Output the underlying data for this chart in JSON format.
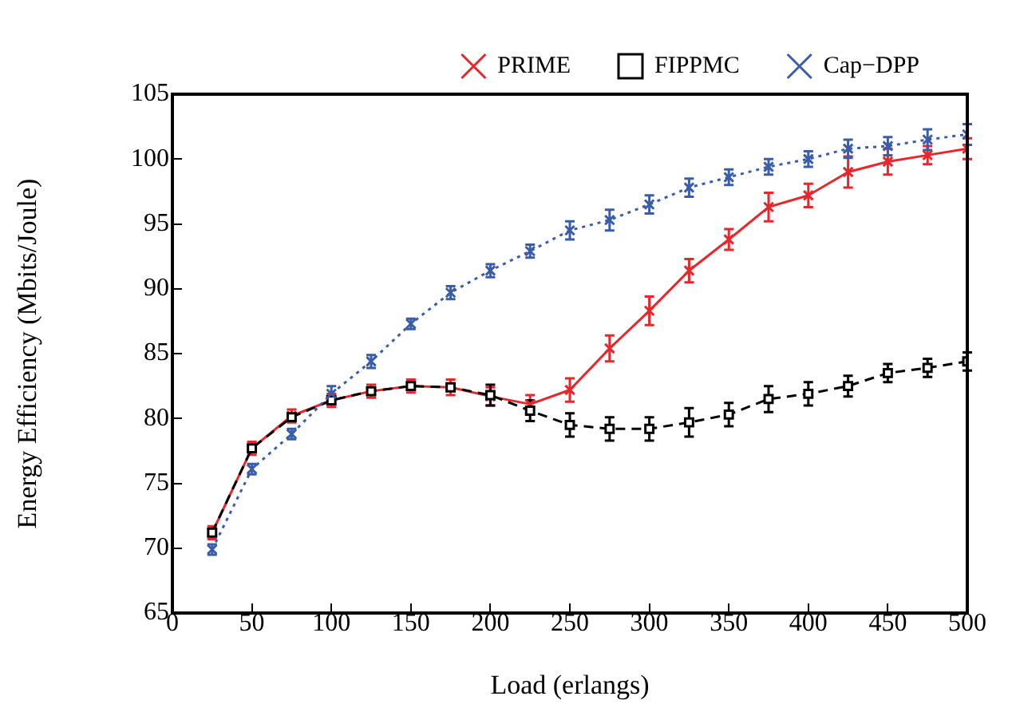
{
  "chart_data": {
    "type": "line",
    "xlabel": "Load (erlangs)",
    "ylabel": "Energy Efficiency (Mbits/Joule)",
    "x": [
      25,
      50,
      75,
      100,
      125,
      150,
      175,
      200,
      225,
      250,
      275,
      300,
      325,
      350,
      375,
      400,
      425,
      450,
      475,
      500
    ],
    "xlim": [
      0,
      500
    ],
    "xticks": [
      0,
      50,
      100,
      150,
      200,
      250,
      300,
      350,
      400,
      450,
      500
    ],
    "ylim": [
      65,
      105
    ],
    "yticks": [
      65,
      70,
      75,
      80,
      85,
      90,
      95,
      100,
      105
    ],
    "grid": false,
    "legend": "top",
    "series": [
      {
        "name": "PRIME",
        "color": "#e8262b",
        "marker": "cross",
        "line_style": "solid",
        "values": [
          71.2,
          77.7,
          80.2,
          81.4,
          82.1,
          82.5,
          82.4,
          81.7,
          81.1,
          82.2,
          85.4,
          88.3,
          91.4,
          93.8,
          96.3,
          97.2,
          99.0,
          99.8,
          100.3,
          100.8
        ],
        "errors": [
          0.5,
          0.5,
          0.5,
          0.5,
          0.5,
          0.5,
          0.6,
          0.7,
          0.7,
          0.9,
          1.0,
          1.1,
          0.9,
          0.8,
          1.1,
          0.9,
          1.2,
          1.0,
          0.7,
          0.8
        ]
      },
      {
        "name": "FIPPMC",
        "color": "#000000",
        "marker": "square",
        "line_style": "dashed",
        "values": [
          71.2,
          77.7,
          80.1,
          81.4,
          82.1,
          82.5,
          82.4,
          81.8,
          80.6,
          79.5,
          79.2,
          79.2,
          79.7,
          80.3,
          81.5,
          81.9,
          82.5,
          83.5,
          83.9,
          84.4
        ],
        "errors": [
          null,
          null,
          null,
          null,
          null,
          null,
          null,
          0.8,
          0.8,
          0.9,
          0.9,
          0.9,
          1.1,
          0.9,
          1.0,
          0.9,
          0.8,
          0.7,
          0.7,
          0.7
        ]
      },
      {
        "name": "Cap−DPP",
        "color": "#3a5daa",
        "marker": "cross",
        "line_style": "dotted",
        "values": [
          69.9,
          76.1,
          78.8,
          81.9,
          84.4,
          87.3,
          89.7,
          91.4,
          92.9,
          94.5,
          95.3,
          96.5,
          97.8,
          98.6,
          99.4,
          100.0,
          100.8,
          101.0,
          101.5,
          101.9
        ],
        "errors": [
          0.4,
          0.4,
          0.4,
          0.6,
          0.5,
          0.4,
          0.5,
          0.5,
          0.5,
          0.7,
          0.8,
          0.7,
          0.7,
          0.6,
          0.6,
          0.6,
          0.7,
          0.7,
          0.8,
          0.8
        ]
      }
    ]
  }
}
